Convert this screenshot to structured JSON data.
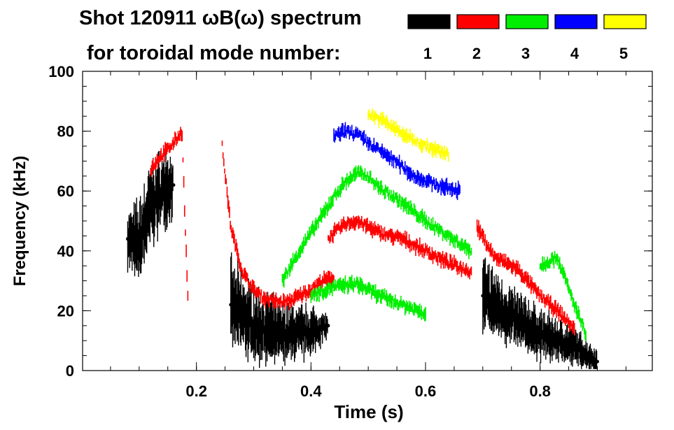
{
  "chart_data": {
    "type": "scatter",
    "title_line1": "Shot 120911 ωB(ω) spectrum",
    "title_line2": "for toroidal mode number:",
    "xlabel": "Time (s)",
    "ylabel": "Frequency (kHz)",
    "xlim": [
      0.0,
      1.0
    ],
    "ylim": [
      0,
      100
    ],
    "xticks": [
      0.2,
      0.4,
      0.6,
      0.8
    ],
    "xticklabels": [
      "0.2",
      "0.4",
      "0.6",
      "0.8"
    ],
    "yticks": [
      0,
      20,
      40,
      60,
      80,
      100
    ],
    "yticklabels": [
      "0",
      "20",
      "40",
      "60",
      "80",
      "100"
    ],
    "grid": false,
    "legend_position": "top-right",
    "legend": [
      {
        "label": "1",
        "color": "#000000"
      },
      {
        "label": "2",
        "color": "#ff0000"
      },
      {
        "label": "3",
        "color": "#00ee00"
      },
      {
        "label": "4",
        "color": "#0000ff"
      },
      {
        "label": "5",
        "color": "#ffff00"
      }
    ],
    "series": [
      {
        "name": "1",
        "color": "#000000",
        "kind": "band",
        "points": [
          [
            0.08,
            44,
            9
          ],
          [
            0.1,
            42,
            14
          ],
          [
            0.12,
            55,
            14
          ],
          [
            0.14,
            60,
            12
          ],
          [
            0.16,
            62,
            10
          ],
          [
            0.26,
            22,
            14
          ],
          [
            0.3,
            15,
            12
          ],
          [
            0.35,
            12,
            10
          ],
          [
            0.4,
            13,
            8
          ],
          [
            0.43,
            15,
            4
          ],
          [
            0.7,
            25,
            12
          ],
          [
            0.74,
            19,
            10
          ],
          [
            0.8,
            12,
            8
          ],
          [
            0.86,
            8,
            6
          ],
          [
            0.9,
            3,
            4
          ]
        ]
      },
      {
        "name": "2",
        "color": "#ff0000",
        "kind": "line",
        "points": [
          [
            0.245,
            75
          ],
          [
            0.26,
            48
          ],
          [
            0.28,
            33
          ],
          [
            0.3,
            27
          ],
          [
            0.32,
            24
          ],
          [
            0.34,
            23
          ],
          [
            0.36,
            23
          ],
          [
            0.38,
            25
          ],
          [
            0.4,
            27
          ],
          [
            0.42,
            30
          ],
          [
            0.44,
            31
          ]
        ]
      },
      {
        "name": "2",
        "color": "#ff0000",
        "kind": "line",
        "points": [
          [
            0.43,
            44
          ],
          [
            0.44,
            46
          ],
          [
            0.46,
            49
          ],
          [
            0.48,
            50
          ],
          [
            0.52,
            46
          ],
          [
            0.56,
            44
          ],
          [
            0.6,
            40
          ],
          [
            0.64,
            36
          ],
          [
            0.68,
            33
          ]
        ]
      },
      {
        "name": "2",
        "color": "#ff0000",
        "kind": "line",
        "points": [
          [
            0.12,
            67
          ],
          [
            0.13,
            70
          ],
          [
            0.16,
            76
          ],
          [
            0.175,
            80
          ],
          [
            0.18,
            50
          ],
          [
            0.185,
            25
          ]
        ]
      },
      {
        "name": "2",
        "color": "#ff0000",
        "kind": "line",
        "points": [
          [
            0.69,
            48
          ],
          [
            0.72,
            38
          ],
          [
            0.76,
            34
          ],
          [
            0.8,
            25
          ],
          [
            0.83,
            20
          ],
          [
            0.86,
            14
          ]
        ]
      },
      {
        "name": "3",
        "color": "#00ee00",
        "kind": "line",
        "points": [
          [
            0.35,
            30
          ],
          [
            0.38,
            40
          ],
          [
            0.42,
            52
          ],
          [
            0.44,
            58
          ],
          [
            0.46,
            63
          ],
          [
            0.48,
            66
          ],
          [
            0.5,
            65
          ],
          [
            0.52,
            61
          ],
          [
            0.56,
            56
          ],
          [
            0.6,
            50
          ],
          [
            0.64,
            45
          ],
          [
            0.68,
            40
          ]
        ]
      },
      {
        "name": "3",
        "color": "#00ee00",
        "kind": "line",
        "points": [
          [
            0.4,
            25
          ],
          [
            0.44,
            28
          ],
          [
            0.48,
            29
          ],
          [
            0.52,
            25
          ],
          [
            0.56,
            22
          ],
          [
            0.6,
            19
          ]
        ]
      },
      {
        "name": "3",
        "color": "#00ee00",
        "kind": "line",
        "points": [
          [
            0.8,
            35
          ],
          [
            0.83,
            38
          ],
          [
            0.86,
            22
          ],
          [
            0.88,
            12
          ]
        ]
      },
      {
        "name": "4",
        "color": "#0000ff",
        "kind": "line",
        "points": [
          [
            0.44,
            78
          ],
          [
            0.46,
            80
          ],
          [
            0.48,
            79
          ],
          [
            0.5,
            76
          ],
          [
            0.54,
            71
          ],
          [
            0.58,
            65
          ],
          [
            0.62,
            62
          ],
          [
            0.66,
            60
          ]
        ]
      },
      {
        "name": "5",
        "color": "#ffff00",
        "kind": "line",
        "points": [
          [
            0.5,
            86
          ],
          [
            0.53,
            83
          ],
          [
            0.56,
            79
          ],
          [
            0.6,
            75
          ],
          [
            0.64,
            72
          ]
        ]
      }
    ]
  }
}
